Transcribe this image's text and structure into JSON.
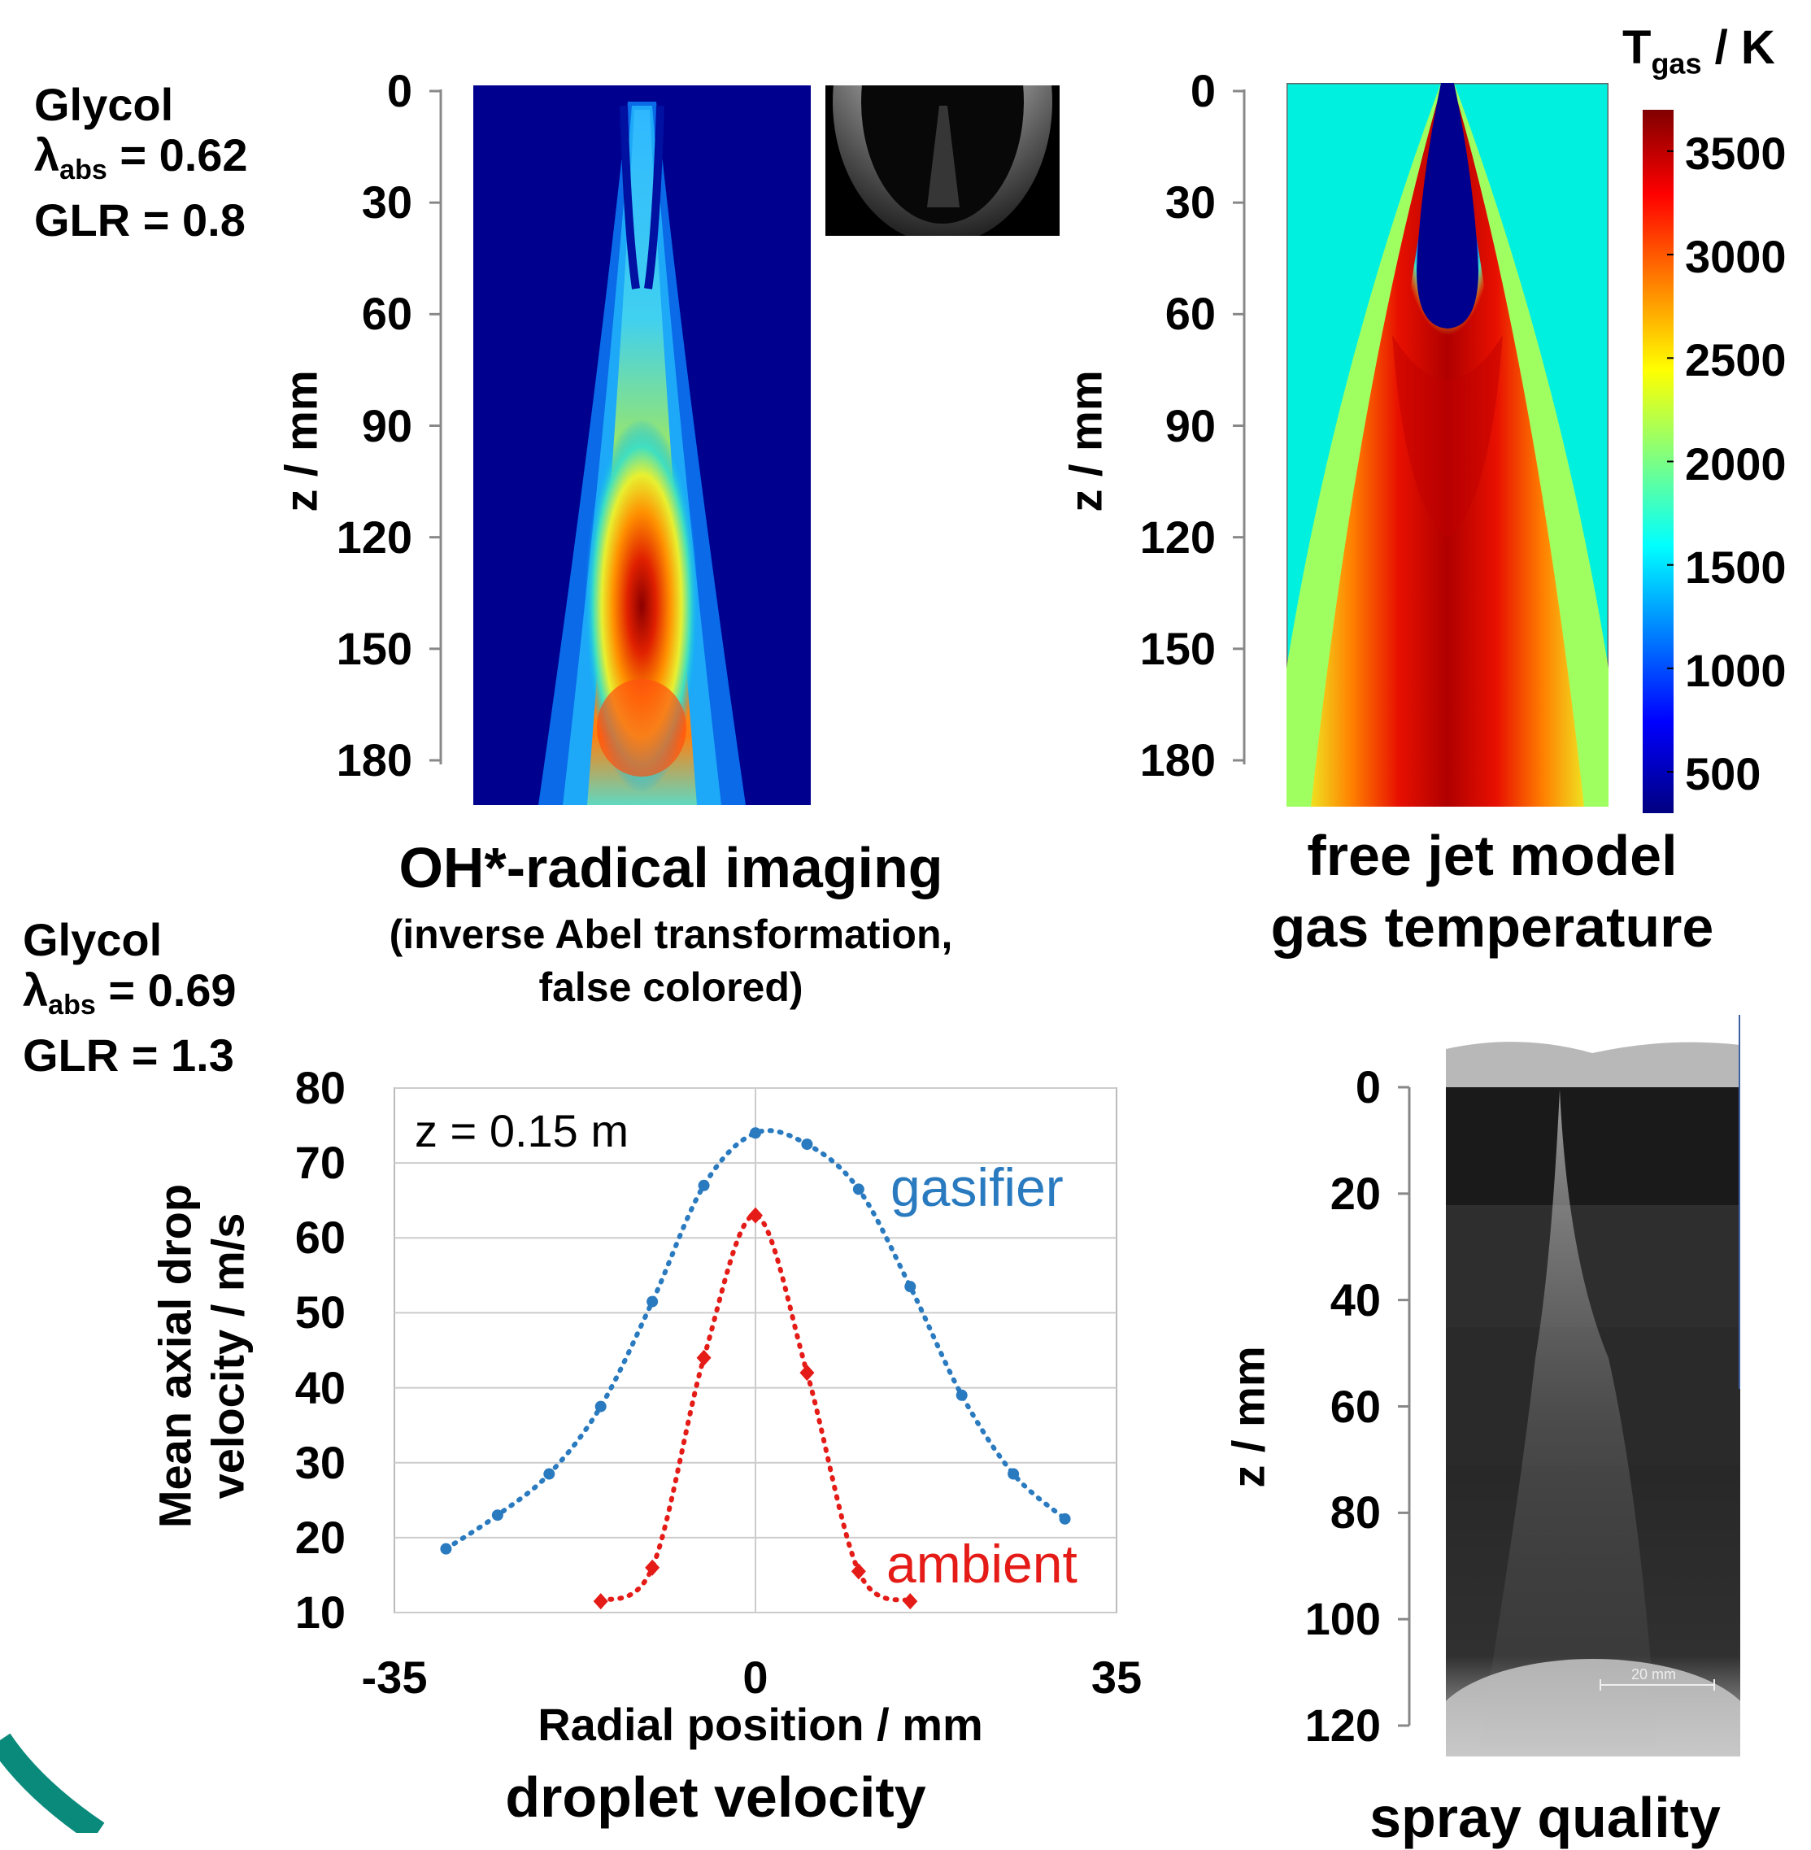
{
  "panel_top_left": {
    "condition": {
      "name": "Glycol",
      "lambda_symbol": "λ",
      "lambda_sub": "abs",
      "lambda_value": "= 0.62",
      "glr": "GLR = 0.8"
    },
    "ylabel": "z / mm",
    "yticks": [
      "0",
      "30",
      "60",
      "90",
      "120",
      "150",
      "180"
    ],
    "title": "OH*-radical imaging",
    "subtitle_line1": "(inverse Abel transformation,",
    "subtitle_line2": "false colored)"
  },
  "panel_top_right": {
    "ylabel": "z / mm",
    "yticks": [
      "0",
      "30",
      "60",
      "90",
      "120",
      "150",
      "180"
    ],
    "title_line1": "free jet model",
    "title_line2": "gas temperature",
    "colorbar": {
      "label_main": "T",
      "label_sub": "gas",
      "label_unit": " / K",
      "ticks": [
        "3500",
        "3000",
        "2500",
        "2000",
        "1500",
        "1000",
        "500"
      ],
      "range": [
        300,
        3700
      ]
    }
  },
  "panel_bottom_left": {
    "condition": {
      "name": "Glycol",
      "lambda_symbol": "λ",
      "lambda_sub": "abs",
      "lambda_value": "= 0.69",
      "glr": "GLR = 1.3"
    },
    "caption": "droplet velocity"
  },
  "panel_bottom_right": {
    "ylabel": "z / mm",
    "yticks": [
      "0",
      "20",
      "40",
      "60",
      "80",
      "100",
      "120"
    ],
    "scalebar_label": "20 mm",
    "caption": "spray quality"
  },
  "chart_data": {
    "type": "line",
    "title": "",
    "annotation": "z = 0.15 m",
    "xlabel": "Radial position / mm",
    "ylabel_line1": "Mean axial drop",
    "ylabel_line2": "velocity  / m/s",
    "xlim": [
      -35,
      35
    ],
    "ylim": [
      10,
      80
    ],
    "xticks": [
      "-35",
      "0",
      "35"
    ],
    "yticks": [
      "80",
      "70",
      "60",
      "50",
      "40",
      "30",
      "20",
      "10"
    ],
    "grid": true,
    "series": [
      {
        "name": "gasifier",
        "color": "#2a7abf",
        "marker": "circle",
        "x": [
          -30,
          -25,
          -20,
          -15,
          -10,
          -5,
          0,
          5,
          10,
          15,
          20,
          25,
          30
        ],
        "y": [
          18.5,
          23,
          28.5,
          37.5,
          51.5,
          67,
          74,
          72.5,
          66.5,
          53.5,
          39,
          28.5,
          22.5
        ]
      },
      {
        "name": "ambient",
        "color": "#e41b17",
        "marker": "diamond",
        "x": [
          -15,
          -10,
          -5,
          0,
          5,
          10,
          15
        ],
        "y": [
          11.5,
          16,
          44,
          63,
          42,
          15.5,
          11.5
        ]
      }
    ]
  }
}
